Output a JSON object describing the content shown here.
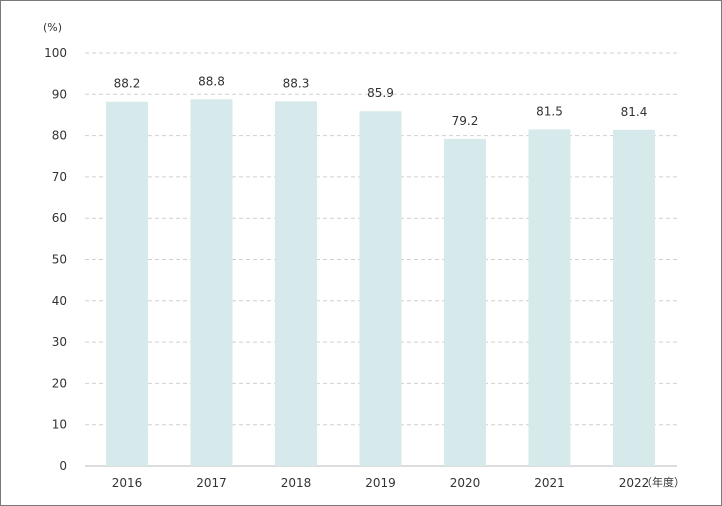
{
  "chart_data": {
    "type": "bar",
    "categories": [
      "2016",
      "2017",
      "2018",
      "2019",
      "2020",
      "2021",
      "2022"
    ],
    "values": [
      88.2,
      88.8,
      88.3,
      85.9,
      79.2,
      81.5,
      81.4
    ],
    "data_labels": [
      "88.2",
      "88.8",
      "88.3",
      "85.9",
      "79.2",
      "81.5",
      "81.4"
    ],
    "ylabel": "(%)",
    "xlabel": "（年度）",
    "ylim": [
      0,
      100
    ],
    "yticks": [
      "0",
      "10",
      "20",
      "30",
      "40",
      "50",
      "60",
      "70",
      "80",
      "90",
      "100"
    ],
    "grid": true,
    "bar_color": "#d6e9eb",
    "grid_color": "#d0d0d0",
    "axis_color": "#bbbbbb"
  }
}
